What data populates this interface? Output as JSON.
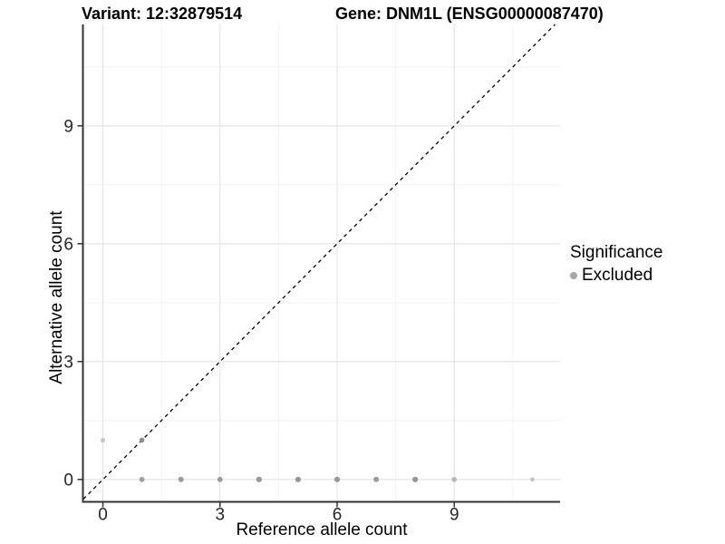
{
  "titles": {
    "variant": "Variant: 12:32879514",
    "gene": "Gene: DNM1L (ENSG00000087470)"
  },
  "chart_data": {
    "type": "scatter",
    "xlabel": "Reference allele count",
    "ylabel": "Alternative allele count",
    "x_ticks": [
      0,
      3,
      6,
      9
    ],
    "y_ticks": [
      0,
      3,
      6,
      9
    ],
    "x_minor": [
      1.5,
      4.5,
      7.5,
      10.5
    ],
    "y_minor": [
      1.5,
      4.5,
      7.5,
      10.5
    ],
    "xlim": [
      -0.5,
      11.71
    ],
    "ylim": [
      -0.57,
      11.58
    ],
    "grid": true,
    "identity_line": {
      "style": "dashed",
      "slope": 1,
      "intercept": 0,
      "color": "#000000",
      "x_start": -0.5,
      "x_end": 11.58
    },
    "series": [
      {
        "name": "Excluded",
        "points": [
          {
            "x": 0,
            "y": 1,
            "color": "#c7c7c7",
            "r": 2.6
          },
          {
            "x": 1,
            "y": 1,
            "color": "#8f8f8f",
            "r": 2.8
          },
          {
            "x": 1,
            "y": 0,
            "color": "#a1a1a1",
            "r": 2.9
          },
          {
            "x": 2,
            "y": 0,
            "color": "#9b9b9b",
            "r": 3.0
          },
          {
            "x": 3,
            "y": 0,
            "color": "#9b9b9b",
            "r": 2.9
          },
          {
            "x": 4,
            "y": 0,
            "color": "#989898",
            "r": 3.1
          },
          {
            "x": 5,
            "y": 0,
            "color": "#989898",
            "r": 3.1
          },
          {
            "x": 6,
            "y": 0,
            "color": "#989898",
            "r": 3.1
          },
          {
            "x": 7,
            "y": 0,
            "color": "#9a9a9a",
            "r": 3.0
          },
          {
            "x": 8,
            "y": 0,
            "color": "#969696",
            "r": 3.1
          },
          {
            "x": 9,
            "y": 0,
            "color": "#b7b7b7",
            "r": 2.8
          },
          {
            "x": 11,
            "y": 0,
            "color": "#c4c4c4",
            "r": 2.4
          }
        ]
      }
    ],
    "legend": {
      "title": "Significance",
      "position": "right",
      "entries": [
        {
          "label": "Excluded",
          "color": "#a6a6a6"
        }
      ]
    }
  },
  "style": {
    "axis_line_color": "#333333",
    "tick_label_color": "#262626",
    "grid_major_color": "#e3e3e3",
    "grid_minor_color": "#f0f0f0",
    "background": "#ffffff"
  }
}
